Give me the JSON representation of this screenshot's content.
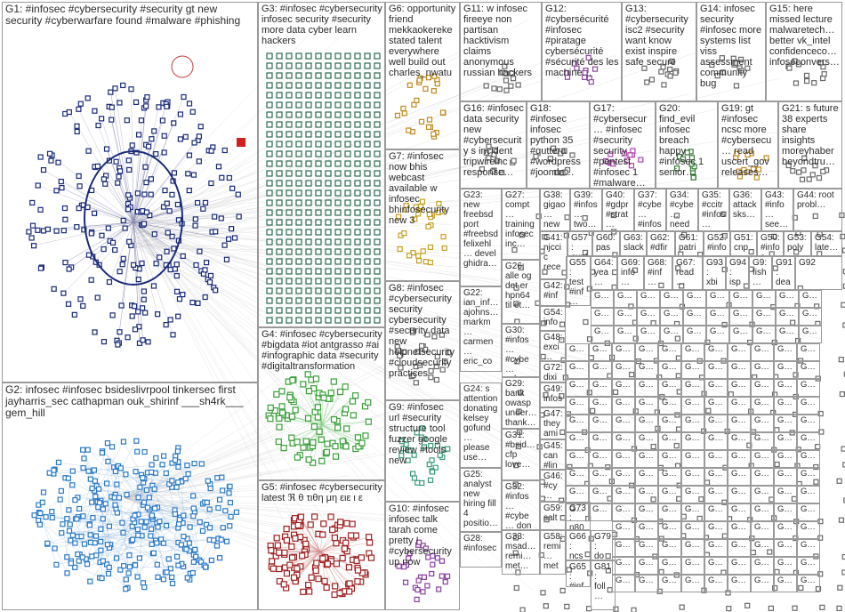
{
  "groups": [
    {
      "id": "G1",
      "label": "G1: #infosec #cybersecurity #security gt new security #cyberwarfare found #malware #phishing",
      "color": "#1a2a7a"
    },
    {
      "id": "G2",
      "label": "G2: infosec #infosec bsideslivrpool tinkersec first jayharris_sec cathapman ouk_shirinf ___sh4rk___ gem_hill",
      "color": "#2a7ac8"
    },
    {
      "id": "G3",
      "label": "G3: #infosec #cybersecurity infosec security #security more data cyber learn hackers",
      "color": "#2a6a50"
    },
    {
      "id": "G4",
      "label": "G4: #infosec #cybersecurity #bigdata #iot antgrasso #ai #infographic data #security #digitaltransformation",
      "color": "#3aa03a"
    },
    {
      "id": "G5",
      "label": "G5: #infosec #cybersecurity latest ℜ θ τιθη μη ειε ι ε",
      "color": "#a02020"
    },
    {
      "id": "G6",
      "label": "G6: opportunity friend mekkaokereke stated talent everywhere well build out charles_nwatu",
      "color": "#c08a20"
    },
    {
      "id": "G7",
      "label": "G7: #infosec now bhis webcast available w infosec bhinfosecurity new 3",
      "color": "#c8a020"
    },
    {
      "id": "G8",
      "label": "G8: #infosec #cybersecurity security cybersecurity #security data new helpnetsecurity #cloudsecurity practices",
      "color": "#6a6a6a"
    },
    {
      "id": "G9",
      "label": "G9: #infosec url #security structure tool fuzzer google review #tools new",
      "color": "#3a9a7a"
    },
    {
      "id": "G10",
      "label": "G10: #infosec infosec talk tarah come pretty ! #cybersecurity up now",
      "color": "#8a40a0"
    },
    {
      "id": "G11",
      "label": "G11: w infosec fireeye non partisan hacktivism claims anonymous russian hackers",
      "color": "#606060"
    },
    {
      "id": "G12",
      "label": "G12: #cybersécurité #infosec #piratage cybersécurité #sécurité des les machine…",
      "color": "#707070"
    },
    {
      "id": "G13",
      "label": "G13: #cybersecurity isc2 #security want know exist inspire safe secure",
      "color": "#707070"
    },
    {
      "id": "G14",
      "label": "G14: infosec security #infosec more systems list viss assessment community bug",
      "color": "#707070"
    },
    {
      "id": "G15",
      "label": "G15: here missed lecture malwaretech… better vk_intel confidenceco… infoseconvers…",
      "color": "#707070"
    },
    {
      "id": "G16",
      "label": "G16: #infosec data security new #cybersecurity s incident tripwireinc response…",
      "color": "#707070"
    },
    {
      "id": "G18",
      "label": "G18: #infosec infosec python 35 #quttera #wordpress #joomla…",
      "color": "#707070"
    },
    {
      "id": "G17",
      "label": "G17: #cybersecur… #infosec #security security #pentest #infosec 1 #malware…",
      "color": "#707070"
    },
    {
      "id": "G20",
      "label": "G20: find_evil infosec breach happy #infosec 1 senior…",
      "color": "#707070"
    },
    {
      "id": "G19",
      "label": "G19: gt #infosec ncsc more #cybersecu… read uscert_gov releases…",
      "color": "#707070"
    },
    {
      "id": "G21",
      "label": "G21: s future 38 experts share insights moreyhaber beyondtru…",
      "color": "#707070"
    },
    {
      "id": "G23",
      "label": "G23: new freebsd port #freebsd felixehl… devel ghidra…",
      "color": "#707070"
    },
    {
      "id": "G27",
      "label": "G27: compt… training infosec inc…",
      "color": "#707070"
    },
    {
      "id": "G38",
      "label": "G38: gigao… new…",
      "color": "#707070"
    },
    {
      "id": "G39",
      "label": "G39: #infos… two…",
      "color": "#707070"
    },
    {
      "id": "G40",
      "label": "G40: #gdpr #strat…",
      "color": "#707070"
    },
    {
      "id": "G37",
      "label": "G37: #cybe… #infos…",
      "color": "#707070"
    },
    {
      "id": "G34",
      "label": "G34: #cybe… need…",
      "color": "#707070"
    },
    {
      "id": "G35",
      "label": "G35: #ccitr #infos…",
      "color": "#707070"
    },
    {
      "id": "G36",
      "label": "G36: attack sks…",
      "color": "#707070"
    },
    {
      "id": "G43",
      "label": "G43: #info… see…",
      "color": "#707070"
    },
    {
      "id": "G44",
      "label": "G44: root probl…",
      "color": "#707070"
    },
    {
      "id": "G26",
      "label": "G26: alle og det er hpn64 til et…",
      "color": "#707070"
    },
    {
      "id": "G41",
      "label": "G41: njccic rece…",
      "color": "#707070"
    },
    {
      "id": "G57",
      "label": "G57: expl…",
      "color": "#707070"
    },
    {
      "id": "G60",
      "label": "G60: pas…",
      "color": "#707070"
    },
    {
      "id": "G63",
      "label": "G63: slack",
      "color": "#707070"
    },
    {
      "id": "G62",
      "label": "G62: #dfir…",
      "color": "#707070"
    },
    {
      "id": "G61",
      "label": "G61: patri…",
      "color": "#707070"
    },
    {
      "id": "G52",
      "label": "G52: #info…",
      "color": "#707070"
    },
    {
      "id": "G51",
      "label": "G51: cnp…",
      "color": "#707070"
    },
    {
      "id": "G50",
      "label": "G50: #infos…",
      "color": "#707070"
    },
    {
      "id": "G53",
      "label": "G53: poly…",
      "color": "#707070"
    },
    {
      "id": "G54b",
      "label": "G54: late…",
      "color": "#707070"
    },
    {
      "id": "G22",
      "label": "G22: ian_inf… ajohns… markm… carmen… eric_co… fpieces…",
      "color": "#707070"
    },
    {
      "id": "G42",
      "label": "G42: #inf… #cy…",
      "color": "#707070"
    },
    {
      "id": "G55",
      "label": "G55: test #inf… sec…",
      "color": "#707070"
    },
    {
      "id": "G54",
      "label": "G54: info… ad…",
      "color": "#707070"
    },
    {
      "id": "G64",
      "label": "G64: yea…",
      "color": "#707070"
    },
    {
      "id": "G69",
      "label": "G69: info…",
      "color": "#707070"
    },
    {
      "id": "G68",
      "label": "G68: #inf…",
      "color": "#707070"
    },
    {
      "id": "G67",
      "label": "G67: read…",
      "color": "#707070"
    },
    {
      "id": "G93",
      "label": "G93: xbi…",
      "color": "#707070"
    },
    {
      "id": "G94",
      "label": "G94: isp…",
      "color": "#707070"
    },
    {
      "id": "G9x",
      "label": "G9: fish…",
      "color": "#707070"
    },
    {
      "id": "G91",
      "label": "G91: dea…",
      "color": "#707070"
    },
    {
      "id": "G92",
      "label": "G92",
      "color": "#707070"
    },
    {
      "id": "G30",
      "label": "G30: #infos… #cybe… cyber…",
      "color": "#707070"
    },
    {
      "id": "G48",
      "label": "G48: exci… time…",
      "color": "#707070"
    },
    {
      "id": "G72",
      "label": "G72: dixi…",
      "color": "#707070"
    },
    {
      "id": "G49",
      "label": "G49: infos… say…",
      "color": "#707070"
    },
    {
      "id": "G24",
      "label": "G24: s attention donating kelsey gofund… please use…",
      "color": "#707070"
    },
    {
      "id": "G29",
      "label": "G29: bank owasp under… thank…",
      "color": "#707070"
    },
    {
      "id": "G47",
      "label": "G47: they ami…",
      "color": "#707070"
    },
    {
      "id": "G45",
      "label": "G45: can #lin…",
      "color": "#707070"
    },
    {
      "id": "G25",
      "label": "G25: analyst new hiring fill 4 positio…",
      "color": "#707070"
    },
    {
      "id": "G31",
      "label": "G31: #bsid… cfp love…",
      "color": "#707070"
    },
    {
      "id": "G46",
      "label": "G46: #cy… n80…",
      "color": "#707070"
    },
    {
      "id": "G32",
      "label": "G32: #infos… #cybe… don t…",
      "color": "#707070"
    },
    {
      "id": "G59",
      "label": "G59: salt…",
      "color": "#707070"
    },
    {
      "id": "G28",
      "label": "G28: #infosec",
      "color": "#707070"
    },
    {
      "id": "G33",
      "label": "G33: msad… remi… met…",
      "color": "#707070"
    },
    {
      "id": "G58",
      "label": "G58: remi… met…",
      "color": "#707070"
    },
    {
      "id": "G66",
      "label": "G66: ncs…",
      "color": "#707070"
    },
    {
      "id": "G65",
      "label": "G65: #inf…",
      "color": "#707070"
    },
    {
      "id": "G73",
      "label": "G73: n80…",
      "color": "#707070"
    },
    {
      "id": "G79",
      "label": "G79: do…",
      "color": "#707070"
    },
    {
      "id": "G81",
      "label": "G81: foll…",
      "color": "#707070"
    }
  ],
  "small_group_prefix": "G"
}
